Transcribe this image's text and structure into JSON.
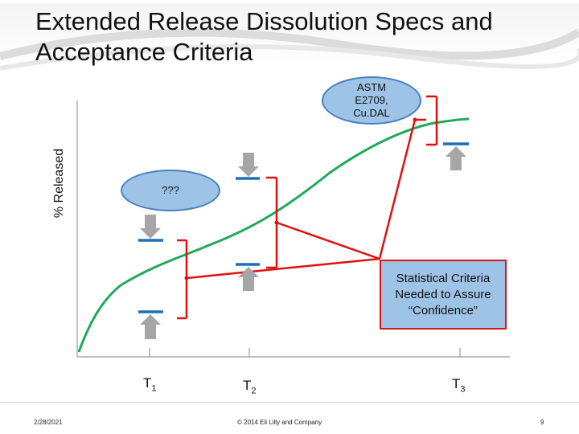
{
  "slide": {
    "title": "Extended Release Dissolution Specs and Acceptance Criteria",
    "ylabel": "% Released",
    "callout_top": "ASTM E2709, Cu.DAL",
    "callout_mid": "???",
    "stat_box": "Statistical Criteria Needed to Assure “Confidence”",
    "time_points": [
      {
        "base": "T",
        "sub": "1"
      },
      {
        "base": "T",
        "sub": "2"
      },
      {
        "base": "T",
        "sub": "3"
      }
    ],
    "footer": {
      "date": "2/28/2021",
      "copyright": "© 2014 Eli Lilly and Company",
      "page": "9"
    }
  },
  "colors": {
    "curve": "#1faa5a",
    "spec_bar": "#1f6fb5",
    "arrow": "#a6a6a6",
    "bracket": "#dd1111",
    "callout_fill": "#9dc3e6"
  }
}
